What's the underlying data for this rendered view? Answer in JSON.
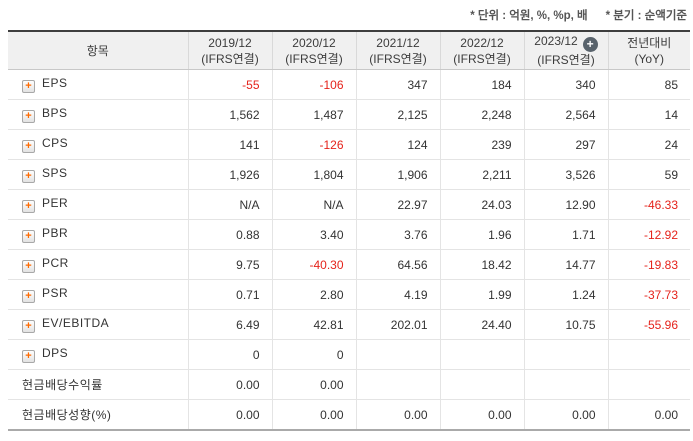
{
  "notes": {
    "unit": "* 단위 : 억원, %, %p, 배",
    "period": "* 분기 : 순액기준"
  },
  "icons": {
    "expand_plus": "+",
    "add_plus": "+"
  },
  "colors": {
    "negative_value": "#e5231b",
    "normal_value": "#333333",
    "header_background": "#f0f0f0",
    "expand_plus_color": "#ff6a00",
    "add_icon_background": "#59636c",
    "table_top_border": "#3e3e3e"
  },
  "table": {
    "header": {
      "item_label": "항목",
      "columns": [
        {
          "line1": "2019/12",
          "line2": "(IFRS연결)",
          "add_icon": false
        },
        {
          "line1": "2020/12",
          "line2": "(IFRS연결)",
          "add_icon": false
        },
        {
          "line1": "2021/12",
          "line2": "(IFRS연결)",
          "add_icon": false
        },
        {
          "line1": "2022/12",
          "line2": "(IFRS연결)",
          "add_icon": false
        },
        {
          "line1": "2023/12",
          "line2": "(IFRS연결)",
          "add_icon": true
        },
        {
          "line1": "전년대비",
          "line2": "(YoY)",
          "add_icon": false
        }
      ]
    },
    "rows": [
      {
        "label": "EPS",
        "expand_icon": true,
        "values": [
          "-55",
          "-106",
          "347",
          "184",
          "340",
          "85"
        ]
      },
      {
        "label": "BPS",
        "expand_icon": true,
        "values": [
          "1,562",
          "1,487",
          "2,125",
          "2,248",
          "2,564",
          "14"
        ]
      },
      {
        "label": "CPS",
        "expand_icon": true,
        "values": [
          "141",
          "-126",
          "124",
          "239",
          "297",
          "24"
        ]
      },
      {
        "label": "SPS",
        "expand_icon": true,
        "values": [
          "1,926",
          "1,804",
          "1,906",
          "2,211",
          "3,526",
          "59"
        ]
      },
      {
        "label": "PER",
        "expand_icon": true,
        "values": [
          "N/A",
          "N/A",
          "22.97",
          "24.03",
          "12.90",
          "-46.33"
        ]
      },
      {
        "label": "PBR",
        "expand_icon": true,
        "values": [
          "0.88",
          "3.40",
          "3.76",
          "1.96",
          "1.71",
          "-12.92"
        ]
      },
      {
        "label": "PCR",
        "expand_icon": true,
        "values": [
          "9.75",
          "-40.30",
          "64.56",
          "18.42",
          "14.77",
          "-19.83"
        ]
      },
      {
        "label": "PSR",
        "expand_icon": true,
        "values": [
          "0.71",
          "2.80",
          "4.19",
          "1.99",
          "1.24",
          "-37.73"
        ]
      },
      {
        "label": "EV/EBITDA",
        "expand_icon": true,
        "values": [
          "6.49",
          "42.81",
          "202.01",
          "24.40",
          "10.75",
          "-55.96"
        ]
      },
      {
        "label": "DPS",
        "expand_icon": true,
        "values": [
          "0",
          "0",
          "",
          "",
          "",
          ""
        ]
      },
      {
        "label": "현금배당수익률",
        "expand_icon": false,
        "values": [
          "0.00",
          "0.00",
          "",
          "",
          "",
          ""
        ]
      },
      {
        "label": "현금배당성향(%)",
        "expand_icon": false,
        "values": [
          "0.00",
          "0.00",
          "0.00",
          "0.00",
          "0.00",
          "0.00"
        ]
      }
    ]
  }
}
